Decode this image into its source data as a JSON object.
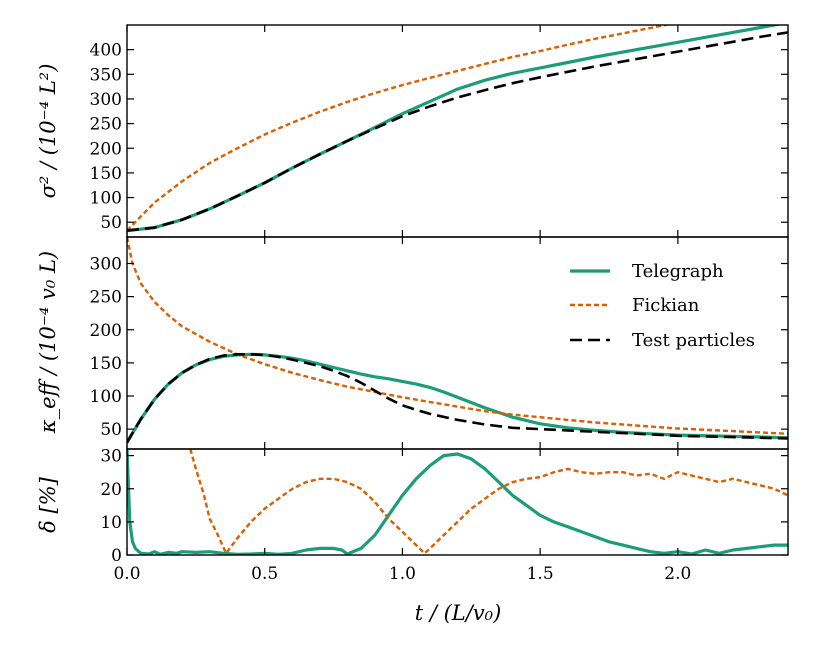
{
  "colors": {
    "telegraph": "#1b9e77",
    "fickian": "#d95f02",
    "test": "#000000"
  },
  "chart_data": [
    {
      "type": "line",
      "id": "sigma2",
      "ylabel": "σ² / (10⁻⁴ L²)",
      "xlim": [
        0,
        2.4
      ],
      "ylim": [
        20,
        450
      ],
      "yticks": [
        50,
        100,
        150,
        200,
        250,
        300,
        350,
        400
      ],
      "ytick_labels": [
        "50",
        "100",
        "150",
        "200",
        "250",
        "300",
        "350",
        "400"
      ],
      "series": [
        {
          "name": "Telegraph",
          "style": "solid-green",
          "x": [
            0,
            0.1,
            0.2,
            0.3,
            0.4,
            0.5,
            0.6,
            0.7,
            0.8,
            0.9,
            1.0,
            1.1,
            1.2,
            1.3,
            1.4,
            1.5,
            1.6,
            1.7,
            1.8,
            1.9,
            2.0,
            2.1,
            2.2,
            2.3,
            2.4
          ],
          "y": [
            33,
            39,
            55,
            77,
            103,
            130,
            160,
            188,
            215,
            242,
            270,
            295,
            320,
            338,
            352,
            363,
            374,
            385,
            395,
            405,
            415,
            425,
            435,
            445,
            455
          ]
        },
        {
          "name": "Fickian",
          "style": "dotted-orange",
          "x": [
            0,
            0.1,
            0.2,
            0.3,
            0.4,
            0.5,
            0.6,
            0.7,
            0.8,
            0.9,
            1.0,
            1.1,
            1.2,
            1.3,
            1.4,
            1.5,
            1.6,
            1.7,
            1.8,
            1.9,
            2.0
          ],
          "y": [
            33,
            90,
            133,
            170,
            200,
            228,
            252,
            274,
            294,
            312,
            328,
            343,
            357,
            371,
            385,
            397,
            410,
            422,
            433,
            444,
            455
          ]
        },
        {
          "name": "Test particles",
          "style": "dashed-black",
          "x": [
            0,
            0.1,
            0.2,
            0.3,
            0.4,
            0.5,
            0.6,
            0.7,
            0.8,
            0.9,
            1.0,
            1.1,
            1.2,
            1.3,
            1.4,
            1.5,
            1.6,
            1.7,
            1.8,
            1.9,
            2.0,
            2.1,
            2.2,
            2.3,
            2.4
          ],
          "y": [
            33,
            39,
            55,
            77,
            103,
            130,
            160,
            188,
            215,
            240,
            265,
            285,
            303,
            318,
            332,
            344,
            355,
            366,
            376,
            386,
            396,
            406,
            416,
            426,
            435
          ]
        }
      ]
    },
    {
      "type": "line",
      "id": "kappa",
      "ylabel": "κ_eff / (10⁻⁴ v₀ L)",
      "xlim": [
        0,
        2.4
      ],
      "ylim": [
        20,
        340
      ],
      "yticks": [
        50,
        100,
        150,
        200,
        250,
        300
      ],
      "ytick_labels": [
        "50",
        "100",
        "150",
        "200",
        "250",
        "300"
      ],
      "legend_position": "top-right",
      "series": [
        {
          "name": "Telegraph",
          "style": "solid-green",
          "x": [
            0,
            0.05,
            0.1,
            0.15,
            0.2,
            0.25,
            0.3,
            0.35,
            0.4,
            0.45,
            0.5,
            0.55,
            0.6,
            0.65,
            0.7,
            0.75,
            0.8,
            0.85,
            0.9,
            0.95,
            1.0,
            1.05,
            1.1,
            1.15,
            1.2,
            1.3,
            1.4,
            1.5,
            1.6,
            1.7,
            1.8,
            1.9,
            2.0,
            2.2,
            2.4
          ],
          "y": [
            30,
            65,
            95,
            118,
            135,
            147,
            155,
            160,
            162,
            163,
            162,
            160,
            157,
            153,
            148,
            143,
            138,
            133,
            129,
            126,
            122,
            118,
            113,
            106,
            98,
            82,
            68,
            58,
            52,
            48,
            45,
            43,
            41,
            39,
            37
          ]
        },
        {
          "name": "Fickian",
          "style": "dotted-orange",
          "x": [
            0,
            0.02,
            0.05,
            0.1,
            0.15,
            0.2,
            0.3,
            0.4,
            0.5,
            0.6,
            0.7,
            0.8,
            0.9,
            1.0,
            1.1,
            1.2,
            1.3,
            1.4,
            1.5,
            1.6,
            1.7,
            1.8,
            1.9,
            2.0,
            2.2,
            2.4
          ],
          "y": [
            340,
            300,
            270,
            242,
            222,
            205,
            182,
            163,
            148,
            135,
            124,
            114,
            106,
            98,
            91,
            84,
            77,
            72,
            68,
            64,
            60,
            57,
            54,
            51,
            47,
            43
          ]
        },
        {
          "name": "Test particles",
          "style": "dashed-black",
          "x": [
            0,
            0.05,
            0.1,
            0.15,
            0.2,
            0.25,
            0.3,
            0.35,
            0.4,
            0.45,
            0.5,
            0.55,
            0.6,
            0.65,
            0.7,
            0.75,
            0.8,
            0.85,
            0.9,
            0.95,
            1.0,
            1.05,
            1.1,
            1.2,
            1.3,
            1.4,
            1.5,
            1.6,
            1.7,
            1.8,
            1.9,
            2.0,
            2.2,
            2.4
          ],
          "y": [
            30,
            65,
            95,
            118,
            135,
            147,
            156,
            161,
            163,
            163,
            162,
            159,
            155,
            150,
            145,
            138,
            130,
            120,
            108,
            96,
            86,
            79,
            73,
            64,
            57,
            52,
            50,
            48,
            46,
            44,
            42,
            40,
            38,
            36
          ]
        }
      ],
      "legend": [
        "Telegraph",
        "Fickian",
        "Test particles"
      ]
    },
    {
      "type": "line",
      "id": "delta",
      "ylabel": "δ [%]",
      "xlabel": "t / (L/v₀)",
      "xlim": [
        0,
        2.4
      ],
      "ylim": [
        0,
        32
      ],
      "xticks": [
        0,
        0.5,
        1.0,
        1.5,
        2.0
      ],
      "xtick_labels": [
        "0.0",
        "0.5",
        "1.0",
        "1.5",
        "2.0"
      ],
      "yticks": [
        0,
        10,
        20,
        30
      ],
      "ytick_labels": [
        "0",
        "10",
        "20",
        "30"
      ],
      "series": [
        {
          "name": "Telegraph",
          "style": "solid-green",
          "x": [
            0,
            0.01,
            0.02,
            0.03,
            0.05,
            0.08,
            0.1,
            0.12,
            0.15,
            0.18,
            0.2,
            0.25,
            0.3,
            0.35,
            0.4,
            0.45,
            0.5,
            0.55,
            0.6,
            0.65,
            0.7,
            0.75,
            0.78,
            0.8,
            0.85,
            0.9,
            0.95,
            1.0,
            1.05,
            1.1,
            1.15,
            1.2,
            1.25,
            1.3,
            1.35,
            1.4,
            1.45,
            1.5,
            1.55,
            1.6,
            1.65,
            1.7,
            1.75,
            1.8,
            1.85,
            1.9,
            1.95,
            2.0,
            2.05,
            2.1,
            2.15,
            2.2,
            2.25,
            2.3,
            2.35,
            2.4
          ],
          "y": [
            32,
            10,
            4,
            2,
            0.5,
            0.3,
            1,
            0.2,
            0.8,
            0.5,
            1,
            0.8,
            1,
            0.5,
            0.2,
            0.3,
            0.5,
            0.2,
            0.5,
            1.5,
            2,
            2,
            1.5,
            0.3,
            2,
            6,
            12,
            18,
            23,
            27,
            30,
            30.5,
            29,
            26,
            22,
            18,
            15,
            12,
            10,
            8.5,
            7,
            5.5,
            4,
            3,
            2,
            1,
            0.5,
            1,
            0.3,
            1.5,
            0.5,
            1.5,
            2,
            2.5,
            3,
            3
          ]
        },
        {
          "name": "Fickian",
          "style": "dotted-orange",
          "x": [
            0.23,
            0.25,
            0.28,
            0.3,
            0.33,
            0.36,
            0.4,
            0.45,
            0.5,
            0.55,
            0.6,
            0.65,
            0.7,
            0.75,
            0.8,
            0.85,
            0.9,
            0.95,
            1.0,
            1.05,
            1.08,
            1.1,
            1.15,
            1.2,
            1.25,
            1.3,
            1.35,
            1.4,
            1.45,
            1.5,
            1.55,
            1.6,
            1.65,
            1.7,
            1.75,
            1.8,
            1.85,
            1.9,
            1.95,
            2.0,
            2.05,
            2.1,
            2.15,
            2.2,
            2.25,
            2.3,
            2.35,
            2.4
          ],
          "y": [
            32,
            26,
            18,
            11,
            6,
            0.5,
            5,
            10,
            14,
            17,
            20,
            22,
            23,
            23,
            22,
            20,
            16,
            11,
            7,
            3,
            0.5,
            2,
            6,
            10,
            14,
            17,
            20,
            22,
            23,
            23.5,
            25,
            26,
            25,
            24.5,
            25,
            25,
            24,
            24.5,
            23,
            25,
            24,
            23,
            22,
            23,
            22,
            21,
            20,
            18
          ]
        }
      ]
    }
  ]
}
